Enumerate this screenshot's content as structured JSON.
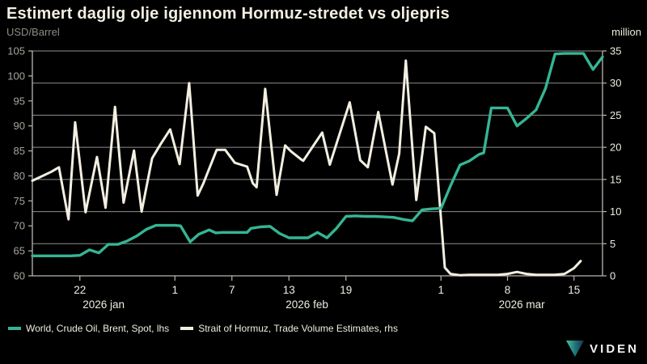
{
  "header": {
    "title": "Estimert daglig olje igjennom Hormuz-stredet vs oljepris",
    "left_unit": "USD/Barrel",
    "right_unit": "million"
  },
  "legend": [
    {
      "label": "World, Crude Oil, Brent, Spot, lhs"
    },
    {
      "label": "Strait of Hormuz, Trade Volume Estimates, rhs"
    }
  ],
  "logo": {
    "text": "VIDEN"
  },
  "colors": {
    "background": "#000000",
    "grid": "#8f8f8f",
    "axis": "#b9b7ae",
    "label_dim": "#a7a59c",
    "label_bright": "#efece0",
    "brent": "#35b593",
    "volume": "#f2efe2",
    "logo_gradient_start": "#3fc6a0",
    "logo_gradient_end": "#16324f"
  },
  "chart_data": {
    "type": "line",
    "title": "Estimert daglig olje igjennom Hormuz-stredet vs oljepris",
    "x_unit": "days since 2026-01-17",
    "x_range": [
      0,
      60
    ],
    "grid": "horizontal-on-right-axis-ticks",
    "legend_position": "bottom-left",
    "left_axis": {
      "label": "USD/Barrel",
      "min": 60,
      "max": 105,
      "tick_step": 5,
      "tick_labels": [
        "60",
        "65",
        "70",
        "75",
        "80",
        "85",
        "90",
        "95",
        "100",
        "105"
      ]
    },
    "right_axis": {
      "label": "million",
      "min": 0,
      "max": 35,
      "tick_step": 5,
      "tick_labels": [
        "0",
        "5",
        "10",
        "15",
        "20",
        "25",
        "30",
        "35"
      ]
    },
    "x_ticks": [
      {
        "day": 5,
        "label": "22"
      },
      {
        "day": 15,
        "label": "1"
      },
      {
        "day": 21,
        "label": "7"
      },
      {
        "day": 27,
        "label": "13"
      },
      {
        "day": 33,
        "label": "19"
      },
      {
        "day": 43,
        "label": "1"
      },
      {
        "day": 50,
        "label": "8"
      },
      {
        "day": 57,
        "label": "15"
      }
    ],
    "month_labels": [
      {
        "day": 7.5,
        "label": "2026 jan"
      },
      {
        "day": 28.9,
        "label": "2026 feb"
      },
      {
        "day": 51.5,
        "label": "2026 mar"
      }
    ],
    "series": [
      {
        "name": "Strait of Hormuz, Trade Volume Estimates, rhs",
        "axis": "right",
        "color": "#f2efe2",
        "width": 3,
        "points": [
          [
            0,
            14.8
          ],
          [
            1,
            15.5
          ],
          [
            2,
            16.2
          ],
          [
            2.8,
            16.9
          ],
          [
            3.8,
            8.8
          ],
          [
            4.5,
            23.9
          ],
          [
            5.6,
            9.9
          ],
          [
            6.8,
            18.5
          ],
          [
            7.7,
            10.6
          ],
          [
            8.7,
            26.3
          ],
          [
            9.6,
            11.4
          ],
          [
            10.7,
            19.5
          ],
          [
            11.5,
            10.0
          ],
          [
            12.6,
            18.3
          ],
          [
            13.5,
            20.5
          ],
          [
            14.5,
            22.8
          ],
          [
            15.5,
            17.4
          ],
          [
            16.5,
            30.0
          ],
          [
            17.4,
            12.5
          ],
          [
            18,
            14.4
          ],
          [
            19.4,
            19.6
          ],
          [
            20.3,
            19.6
          ],
          [
            21.3,
            17.6
          ],
          [
            22.6,
            17.0
          ],
          [
            23.2,
            14.4
          ],
          [
            23.6,
            13.8
          ],
          [
            24.5,
            29.1
          ],
          [
            25.7,
            12.6
          ],
          [
            26.6,
            20.3
          ],
          [
            27.2,
            19.4
          ],
          [
            28.3,
            18.1
          ],
          [
            28.5,
            17.9
          ],
          [
            30.5,
            22.3
          ],
          [
            31.3,
            17.3
          ],
          [
            33.4,
            27.0
          ],
          [
            34.5,
            18.0
          ],
          [
            35.3,
            16.9
          ],
          [
            36.4,
            25.5
          ],
          [
            37.9,
            14.2
          ],
          [
            38.6,
            19.0
          ],
          [
            39.3,
            33.5
          ],
          [
            40.4,
            11.8
          ],
          [
            41.4,
            23.2
          ],
          [
            42.3,
            22.2
          ],
          [
            43.4,
            1.3
          ],
          [
            44,
            0.3
          ],
          [
            45,
            0.1
          ],
          [
            46,
            0.15
          ],
          [
            47,
            0.15
          ],
          [
            48,
            0.15
          ],
          [
            49,
            0.15
          ],
          [
            50,
            0.3
          ],
          [
            51,
            0.6
          ],
          [
            52,
            0.3
          ],
          [
            53,
            0.15
          ],
          [
            54,
            0.15
          ],
          [
            55,
            0.15
          ],
          [
            56,
            0.3
          ],
          [
            57,
            1.2
          ],
          [
            57.7,
            2.3
          ]
        ]
      },
      {
        "name": "World, Crude Oil, Brent, Spot, lhs",
        "axis": "left",
        "color": "#35b593",
        "width": 3.4,
        "points": [
          [
            0,
            64
          ],
          [
            1,
            64
          ],
          [
            2,
            64
          ],
          [
            3,
            64
          ],
          [
            4,
            64
          ],
          [
            5,
            64.1
          ],
          [
            6,
            65.2
          ],
          [
            7,
            64.6
          ],
          [
            8,
            66.3
          ],
          [
            9,
            66.3
          ],
          [
            10,
            67.0
          ],
          [
            11,
            68.0
          ],
          [
            12,
            69.3
          ],
          [
            13,
            70.1
          ],
          [
            14,
            70.1
          ],
          [
            15,
            70.1
          ],
          [
            15.6,
            70.0
          ],
          [
            16.6,
            66.8
          ],
          [
            17.5,
            68.3
          ],
          [
            18.6,
            69.2
          ],
          [
            19.3,
            68.6
          ],
          [
            20,
            68.7
          ],
          [
            21.5,
            68.7
          ],
          [
            22.6,
            68.7
          ],
          [
            23,
            69.5
          ],
          [
            24,
            69.8
          ],
          [
            25,
            69.9
          ],
          [
            26,
            68.5
          ],
          [
            27,
            67.6
          ],
          [
            28,
            67.6
          ],
          [
            29,
            67.6
          ],
          [
            30,
            68.7
          ],
          [
            31,
            67.6
          ],
          [
            32,
            69.5
          ],
          [
            33,
            71.9
          ],
          [
            34,
            72.0
          ],
          [
            35,
            71.9
          ],
          [
            36,
            71.9
          ],
          [
            37,
            71.8
          ],
          [
            38,
            71.7
          ],
          [
            39,
            71.3
          ],
          [
            40,
            71.0
          ],
          [
            41,
            73.2
          ],
          [
            42,
            73.4
          ],
          [
            43,
            73.5
          ],
          [
            44,
            78.0
          ],
          [
            45,
            82.2
          ],
          [
            46,
            83.0
          ],
          [
            47,
            84.3
          ],
          [
            47.5,
            84.6
          ],
          [
            48.3,
            93.6
          ],
          [
            49,
            93.6
          ],
          [
            50,
            93.6
          ],
          [
            51,
            90.0
          ],
          [
            52,
            91.5
          ],
          [
            53,
            93.2
          ],
          [
            54,
            97.5
          ],
          [
            55,
            104.4
          ],
          [
            56,
            104.5
          ],
          [
            57,
            104.5
          ],
          [
            58,
            104.5
          ],
          [
            59,
            101.3
          ],
          [
            60,
            103.8
          ]
        ]
      }
    ]
  }
}
